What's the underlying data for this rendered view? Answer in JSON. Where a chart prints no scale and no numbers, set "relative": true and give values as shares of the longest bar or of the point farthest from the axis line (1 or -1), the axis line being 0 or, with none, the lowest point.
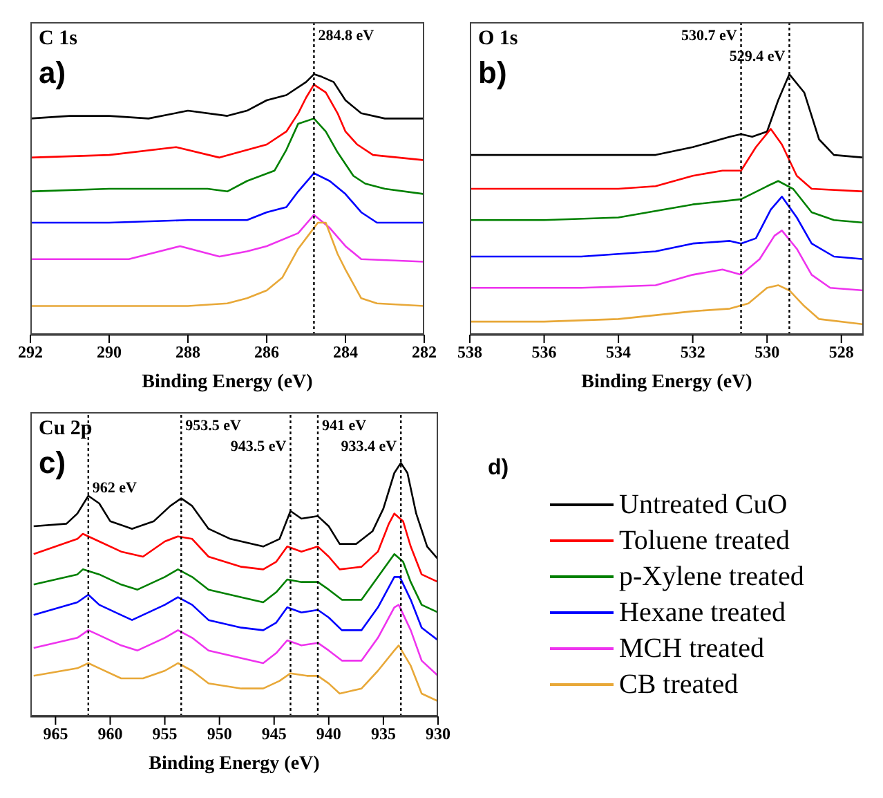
{
  "chart_data": [
    {
      "type": "line",
      "relative": true,
      "xlabel": "Binding Energy (eV)",
      "annotations": [
        "C 1s",
        "a)"
      ],
      "xlim": [
        292,
        282
      ],
      "xticks": [
        292,
        290,
        288,
        286,
        284,
        282
      ],
      "tick_labels": "x",
      "line_style": "solid",
      "marker": "none",
      "legend": false,
      "ref_lines": [
        {
          "axis": "x",
          "value": 284.8,
          "label": "284.8 eV",
          "line_style": "dotted",
          "color": "#000000"
        }
      ],
      "series": [
        {
          "color": "#000000",
          "x": [
            292,
            291,
            290,
            289,
            288,
            287,
            286.5,
            286,
            285.5,
            285,
            284.8,
            284.6,
            284.3,
            284,
            283.6,
            283,
            282.5,
            282
          ],
          "values": [
            0.83,
            0.84,
            0.84,
            0.83,
            0.86,
            0.84,
            0.86,
            0.9,
            0.92,
            0.97,
            1,
            0.99,
            0.97,
            0.9,
            0.85,
            0.83,
            0.83,
            0.83
          ]
        },
        {
          "color": "#ff0000",
          "x": [
            292,
            290,
            288.3,
            287.2,
            286,
            285.5,
            285.2,
            285,
            284.8,
            284.5,
            284.2,
            284,
            283.7,
            283.3,
            282
          ],
          "values": [
            0.68,
            0.69,
            0.72,
            0.68,
            0.73,
            0.78,
            0.85,
            0.91,
            0.96,
            0.93,
            0.85,
            0.78,
            0.73,
            0.69,
            0.67
          ]
        },
        {
          "color": "#008000",
          "x": [
            292,
            290,
            289,
            287.5,
            287,
            286.5,
            285.8,
            285.5,
            285.2,
            284.8,
            284.5,
            284.2,
            283.8,
            283.5,
            283,
            282
          ],
          "values": [
            0.55,
            0.56,
            0.56,
            0.56,
            0.55,
            0.59,
            0.63,
            0.71,
            0.81,
            0.83,
            0.78,
            0.7,
            0.61,
            0.58,
            0.56,
            0.54
          ]
        },
        {
          "color": "#0000ff",
          "x": [
            292,
            290,
            288,
            286.5,
            286,
            285.5,
            285.2,
            284.8,
            284.4,
            284,
            283.6,
            283.2,
            282
          ],
          "values": [
            0.43,
            0.43,
            0.44,
            0.44,
            0.47,
            0.49,
            0.55,
            0.62,
            0.59,
            0.54,
            0.47,
            0.43,
            0.43
          ]
        },
        {
          "color": "#ee33ee",
          "x": [
            292,
            290,
            289.5,
            288.2,
            287.2,
            286.5,
            286,
            285.2,
            284.8,
            284.4,
            284,
            283.6,
            282
          ],
          "values": [
            0.29,
            0.29,
            0.29,
            0.34,
            0.3,
            0.32,
            0.34,
            0.39,
            0.46,
            0.41,
            0.34,
            0.29,
            0.28
          ]
        },
        {
          "color": "#e8a838",
          "x": [
            292,
            290,
            288,
            287,
            286.5,
            286,
            285.6,
            285.2,
            284.9,
            284.7,
            284.5,
            284.2,
            284,
            283.6,
            283.2,
            282
          ],
          "values": [
            0.11,
            0.11,
            0.11,
            0.12,
            0.14,
            0.17,
            0.22,
            0.33,
            0.39,
            0.43,
            0.43,
            0.31,
            0.25,
            0.14,
            0.12,
            0.11
          ]
        }
      ]
    },
    {
      "type": "line",
      "relative": true,
      "xlabel": "Binding Energy (eV)",
      "annotations": [
        "O 1s",
        "b)"
      ],
      "xlim": [
        538,
        527.4
      ],
      "xticks": [
        538,
        536,
        534,
        532,
        530,
        528
      ],
      "tick_labels": "x",
      "line_style": "solid",
      "marker": "none",
      "legend": false,
      "ref_lines": [
        {
          "axis": "x",
          "value": 530.7,
          "label": "530.7 eV",
          "line_style": "dotted",
          "color": "#000000"
        },
        {
          "axis": "x",
          "value": 529.4,
          "label": "529.4 eV",
          "line_style": "dotted",
          "color": "#000000"
        }
      ],
      "series": [
        {
          "color": "#000000",
          "x": [
            538,
            536,
            534,
            533,
            532,
            531,
            530.7,
            530.4,
            530,
            529.7,
            529.4,
            529,
            528.6,
            528.2,
            527.4
          ],
          "values": [
            0.69,
            0.69,
            0.69,
            0.69,
            0.72,
            0.76,
            0.77,
            0.76,
            0.78,
            0.9,
            1,
            0.93,
            0.75,
            0.69,
            0.68
          ]
        },
        {
          "color": "#ff0000",
          "x": [
            538,
            534,
            533,
            532,
            531.2,
            530.7,
            530.3,
            529.9,
            529.6,
            529.2,
            528.8,
            527.4
          ],
          "values": [
            0.56,
            0.56,
            0.57,
            0.61,
            0.63,
            0.63,
            0.72,
            0.79,
            0.73,
            0.61,
            0.56,
            0.55
          ]
        },
        {
          "color": "#008000",
          "x": [
            538,
            536,
            534,
            532,
            530.7,
            530,
            529.7,
            529.3,
            528.8,
            528.2,
            527.4
          ],
          "values": [
            0.44,
            0.44,
            0.45,
            0.5,
            0.52,
            0.57,
            0.59,
            0.56,
            0.47,
            0.44,
            0.43
          ]
        },
        {
          "color": "#0000ff",
          "x": [
            538,
            535,
            533,
            532,
            531,
            530.7,
            530.3,
            529.9,
            529.6,
            529.2,
            528.8,
            528.2,
            527.4
          ],
          "values": [
            0.3,
            0.3,
            0.32,
            0.35,
            0.36,
            0.35,
            0.37,
            0.48,
            0.53,
            0.45,
            0.35,
            0.3,
            0.29
          ]
        },
        {
          "color": "#ee33ee",
          "x": [
            538,
            535,
            533,
            532,
            531.2,
            530.7,
            530.2,
            529.8,
            529.6,
            529.2,
            528.8,
            528.3,
            527.4
          ],
          "values": [
            0.18,
            0.18,
            0.19,
            0.23,
            0.25,
            0.23,
            0.29,
            0.38,
            0.4,
            0.33,
            0.23,
            0.18,
            0.17
          ]
        },
        {
          "color": "#e8a838",
          "x": [
            538,
            536,
            534,
            532,
            531,
            530.5,
            530,
            529.7,
            529.4,
            529,
            528.6,
            527.4
          ],
          "values": [
            0.05,
            0.05,
            0.06,
            0.09,
            0.1,
            0.12,
            0.18,
            0.19,
            0.17,
            0.11,
            0.06,
            0.04
          ]
        }
      ]
    },
    {
      "type": "line",
      "relative": true,
      "xlabel": "Binding Energy (eV)",
      "annotations": [
        "Cu 2p",
        "c)",
        "d)"
      ],
      "xlim": [
        967.3,
        930
      ],
      "xticks": [
        965,
        960,
        955,
        950,
        945,
        940,
        935,
        930
      ],
      "tick_labels": "x",
      "line_style": "solid",
      "marker": "none",
      "legend": "right",
      "ref_lines": [
        {
          "axis": "x",
          "value": 962,
          "label": "962 eV",
          "line_style": "dotted",
          "color": "#000000"
        },
        {
          "axis": "x",
          "value": 953.5,
          "label": "953.5 eV",
          "line_style": "dotted",
          "color": "#000000"
        },
        {
          "axis": "x",
          "value": 943.5,
          "label": "943.5 eV",
          "line_style": "dotted",
          "color": "#000000"
        },
        {
          "axis": "x",
          "value": 941,
          "label": "941 eV",
          "line_style": "dotted",
          "color": "#000000"
        },
        {
          "axis": "x",
          "value": 933.4,
          "label": "933.4 eV",
          "line_style": "dotted",
          "color": "#000000"
        }
      ],
      "series": [
        {
          "name": "Untreated CuO",
          "color": "#000000",
          "x": [
            967,
            964,
            963,
            962,
            961,
            960,
            958,
            956,
            954.5,
            953.5,
            952.5,
            951,
            949,
            946,
            944.5,
            943.5,
            942.5,
            941,
            940,
            939,
            937.5,
            936,
            935,
            934,
            933.4,
            932.8,
            932,
            931,
            930
          ],
          "values": [
            0.75,
            0.76,
            0.8,
            0.87,
            0.84,
            0.77,
            0.74,
            0.77,
            0.83,
            0.86,
            0.83,
            0.74,
            0.7,
            0.67,
            0.7,
            0.81,
            0.78,
            0.79,
            0.75,
            0.68,
            0.68,
            0.73,
            0.82,
            0.96,
            1,
            0.96,
            0.8,
            0.67,
            0.62
          ]
        },
        {
          "name": "Toluene treated",
          "color": "#ff0000",
          "x": [
            967,
            963,
            962.5,
            961,
            959,
            957,
            955,
            953.8,
            952.5,
            951,
            948,
            946,
            944.8,
            943.8,
            942.5,
            941,
            940,
            939,
            937,
            935.5,
            934.5,
            934,
            933.2,
            932.5,
            931.5,
            930
          ],
          "values": [
            0.64,
            0.7,
            0.72,
            0.69,
            0.65,
            0.63,
            0.69,
            0.71,
            0.7,
            0.63,
            0.59,
            0.58,
            0.61,
            0.67,
            0.65,
            0.67,
            0.63,
            0.58,
            0.59,
            0.65,
            0.76,
            0.8,
            0.77,
            0.67,
            0.56,
            0.53
          ]
        },
        {
          "name": "p-Xylene treated",
          "color": "#008000",
          "x": [
            967,
            963,
            962.5,
            961,
            959,
            957.5,
            955,
            953.8,
            952.5,
            951,
            948,
            946,
            944.8,
            943.8,
            942.5,
            941,
            940,
            938.8,
            937,
            935.5,
            934,
            933.2,
            932.5,
            931.5,
            930
          ],
          "values": [
            0.52,
            0.56,
            0.58,
            0.56,
            0.52,
            0.5,
            0.55,
            0.58,
            0.55,
            0.5,
            0.47,
            0.45,
            0.49,
            0.54,
            0.53,
            0.53,
            0.5,
            0.46,
            0.46,
            0.55,
            0.64,
            0.61,
            0.53,
            0.44,
            0.41
          ]
        },
        {
          "name": "Hexane treated",
          "color": "#0000ff",
          "x": [
            967,
            963,
            962,
            961,
            959,
            958,
            955,
            953.8,
            952.5,
            951,
            948,
            946,
            944.8,
            943.8,
            942.5,
            941,
            940,
            938.8,
            937,
            935.5,
            934,
            933.5,
            932.5,
            931.5,
            930
          ],
          "values": [
            0.4,
            0.45,
            0.48,
            0.44,
            0.4,
            0.38,
            0.44,
            0.47,
            0.44,
            0.38,
            0.35,
            0.34,
            0.37,
            0.43,
            0.41,
            0.42,
            0.39,
            0.34,
            0.34,
            0.43,
            0.55,
            0.55,
            0.46,
            0.35,
            0.3
          ]
        },
        {
          "name": "MCH treated",
          "color": "#ee33ee",
          "x": [
            967,
            963,
            962,
            961,
            959,
            957.5,
            955,
            953.8,
            952.5,
            951,
            948,
            946,
            944.8,
            943.8,
            942.5,
            941,
            940,
            938.8,
            937,
            935.5,
            934,
            933.6,
            932.5,
            931.5,
            930
          ],
          "values": [
            0.27,
            0.31,
            0.34,
            0.32,
            0.28,
            0.26,
            0.31,
            0.34,
            0.31,
            0.26,
            0.23,
            0.21,
            0.25,
            0.3,
            0.28,
            0.29,
            0.26,
            0.22,
            0.22,
            0.31,
            0.43,
            0.44,
            0.34,
            0.22,
            0.16
          ]
        },
        {
          "name": "CB treated",
          "color": "#e8a838",
          "x": [
            967,
            963,
            962,
            961,
            959,
            957,
            955,
            953.8,
            952.5,
            951,
            948,
            946,
            944.5,
            943.5,
            942,
            941,
            940,
            939,
            937,
            935.5,
            934,
            933.6,
            932.5,
            931.5,
            930
          ],
          "values": [
            0.16,
            0.19,
            0.21,
            0.19,
            0.15,
            0.15,
            0.18,
            0.21,
            0.18,
            0.13,
            0.11,
            0.11,
            0.14,
            0.17,
            0.16,
            0.16,
            0.13,
            0.09,
            0.11,
            0.18,
            0.26,
            0.28,
            0.2,
            0.09,
            0.06
          ]
        }
      ]
    }
  ]
}
